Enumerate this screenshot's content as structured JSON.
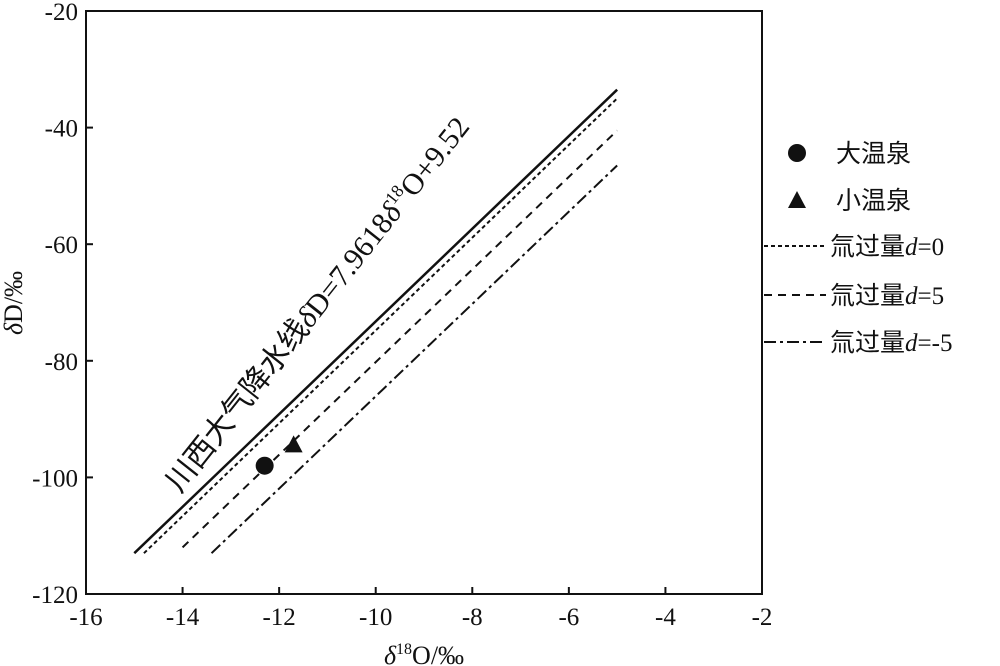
{
  "chart_data": {
    "type": "scatter",
    "xlabel_parts": {
      "delta": "δ",
      "sup": "18",
      "rest": "O/‰"
    },
    "ylabel_parts": {
      "delta": "δ",
      "rest": "D/‰"
    },
    "xlim": [
      -16,
      -2
    ],
    "ylim": [
      -120,
      -20
    ],
    "x_ticks": [
      -16,
      -14,
      -12,
      -10,
      -8,
      -6,
      -4,
      -2
    ],
    "y_ticks": [
      -20,
      -40,
      -60,
      -80,
      -100,
      -120
    ],
    "grid": false,
    "legend_position": "right",
    "points": [
      {
        "name": "大温泉",
        "marker": "circle",
        "x": -12.3,
        "y": -98
      },
      {
        "name": "小温泉",
        "marker": "triangle",
        "x": -11.7,
        "y": -94.5
      }
    ],
    "lines": [
      {
        "style": "solid",
        "x": [
          -15.0,
          -5.0
        ],
        "y": [
          -113.0,
          -33.5
        ]
      },
      {
        "name": "氚过量d=0",
        "style": "dotted",
        "x": [
          -14.8,
          -5.0
        ],
        "y": [
          -113.0,
          -35.0
        ]
      },
      {
        "name": "氚过量d=5",
        "style": "dashed",
        "x": [
          -14.0,
          -5.0
        ],
        "y": [
          -112.0,
          -40.5
        ]
      },
      {
        "name": "氚过量d=-5",
        "style": "dashdot",
        "x": [
          -13.4,
          -5.0
        ],
        "y": [
          -113.0,
          -46.5
        ]
      }
    ],
    "legend": [
      {
        "label": "大温泉",
        "symbol": "circle"
      },
      {
        "label": "小温泉",
        "symbol": "triangle"
      },
      {
        "label_prefix": "氚过量",
        "label_var": "d",
        "label_suffix": "=0",
        "symbol": "dotted"
      },
      {
        "label_prefix": "氚过量",
        "label_var": "d",
        "label_suffix": "=5",
        "symbol": "dashed"
      },
      {
        "label_prefix": "氚过量",
        "label_var": "d",
        "label_suffix": "=-5",
        "symbol": "dashdot"
      }
    ],
    "annotation": {
      "prefix": "川西大气降水线",
      "delta1": "δ",
      "mid": "D=7.9618",
      "delta2": "δ",
      "sup": "18",
      "suffix": "O+9.52"
    }
  }
}
